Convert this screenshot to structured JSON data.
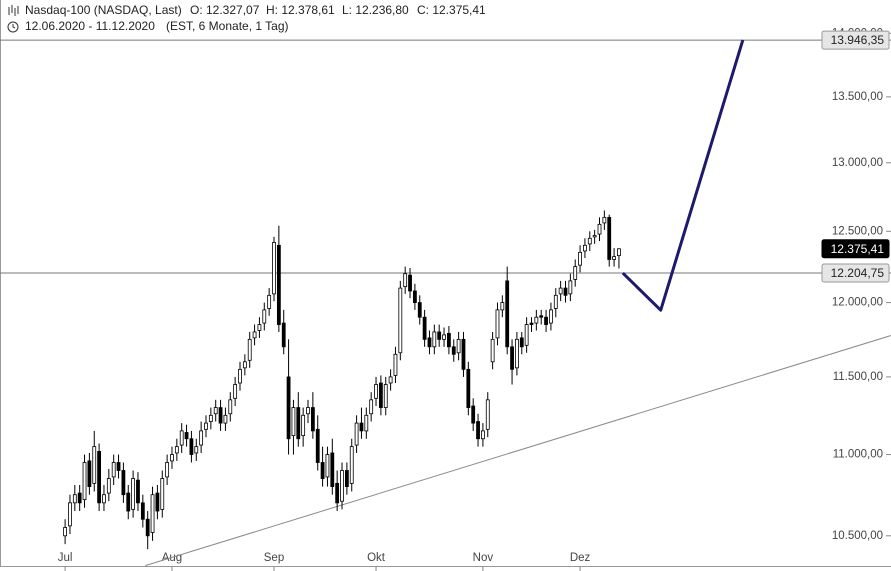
{
  "header": {
    "title": "Nasdaq-100 (NASDAQ, Last)",
    "ohlc": [
      "O: 12.327,07",
      "H: 12.378,61",
      "L: 12.236,80",
      "C: 12.375,41"
    ],
    "range": "12.06.2020 - 11.12.2020",
    "info": "(EST, 6 Monate, 1 Tag)"
  },
  "chart_data": {
    "type": "candlestick",
    "log_scale": true,
    "grid": false,
    "xlim": [
      -13.4,
      170
    ],
    "ylim": [
      10320,
      14270
    ],
    "yticks": [
      {
        "value": 10500,
        "label": "10.500,00"
      },
      {
        "value": 11000,
        "label": "11.000,00"
      },
      {
        "value": 11500,
        "label": "11.500,00"
      },
      {
        "value": 12000,
        "label": "12.000,00"
      },
      {
        "value": 12500,
        "label": "12.500,00"
      },
      {
        "value": 13000,
        "label": "13.000,00"
      },
      {
        "value": 13500,
        "label": "13.500,00"
      },
      {
        "value": 14000,
        "label": "14.000,00"
      }
    ],
    "categories": [
      "Jul",
      null,
      null,
      null,
      null,
      null,
      null,
      null,
      null,
      null,
      null,
      null,
      null,
      null,
      null,
      null,
      null,
      null,
      null,
      null,
      null,
      null,
      "Aug",
      null,
      null,
      null,
      null,
      null,
      null,
      null,
      null,
      null,
      null,
      null,
      null,
      null,
      null,
      null,
      null,
      null,
      null,
      null,
      null,
      "Sep",
      null,
      null,
      null,
      null,
      null,
      null,
      null,
      null,
      null,
      null,
      null,
      null,
      null,
      null,
      null,
      null,
      null,
      null,
      null,
      null,
      "Okt",
      null,
      null,
      null,
      null,
      null,
      null,
      null,
      null,
      null,
      null,
      null,
      null,
      null,
      null,
      null,
      null,
      null,
      null,
      null,
      null,
      null,
      "Nov",
      null,
      null,
      null,
      null,
      null,
      null,
      null,
      null,
      null,
      null,
      null,
      null,
      null,
      null,
      null,
      null,
      null,
      null,
      null,
      "Dez",
      null,
      null,
      null,
      null,
      null,
      null,
      null,
      null
    ],
    "open": [
      10500,
      10560,
      10700,
      10760,
      10720,
      10960,
      10820,
      11020,
      10700,
      10760,
      10860,
      10950,
      10900,
      10760,
      10660,
      10840,
      10700,
      10600,
      10520,
      10760,
      10660,
      10860,
      10960,
      11010,
      11060,
      11140,
      11100,
      11010,
      11060,
      11160,
      11210,
      11260,
      11300,
      11200,
      11260,
      11360,
      11460,
      11560,
      11610,
      11760,
      11810,
      11860,
      11960,
      12060,
      12400,
      11860,
      11500,
      11120,
      11300,
      11120,
      11260,
      11300,
      11160,
      10950,
      10860,
      11010,
      10820,
      10710,
      10900,
      10820,
      11060,
      11200,
      11150,
      11260,
      11360,
      11460,
      11300,
      11460,
      11510,
      11660,
      12110,
      12190,
      12080,
      12000,
      11900,
      11760,
      11700,
      11800,
      11750,
      11790,
      11700,
      11660,
      11750,
      11550,
      11310,
      11210,
      11100,
      11160,
      11600,
      11760,
      11950,
      12150,
      11700,
      11560,
      11760,
      11710,
      11860,
      11860,
      11910,
      11900,
      11860,
      11960,
      12060,
      12100,
      12060,
      12160,
      12260,
      12360,
      12410,
      12460,
      12480,
      12560,
      12600,
      12300,
      12327.07
    ],
    "high": [
      10600,
      10750,
      10810,
      10810,
      11000,
      11010,
      11150,
      11070,
      10810,
      10910,
      11000,
      11000,
      10950,
      10810,
      10900,
      10890,
      10750,
      10650,
      10800,
      10810,
      10900,
      11000,
      11050,
      11100,
      11200,
      11190,
      11150,
      11100,
      11210,
      11250,
      11300,
      11350,
      11350,
      11300,
      11400,
      11500,
      11600,
      11650,
      11800,
      11850,
      11900,
      12000,
      12100,
      12460,
      12540,
      11950,
      11750,
      11350,
      11400,
      11300,
      11350,
      11400,
      11250,
      11050,
      11050,
      11100,
      10900,
      10950,
      10950,
      11100,
      11250,
      11300,
      11300,
      11400,
      11500,
      11510,
      11500,
      11550,
      11700,
      12150,
      12250,
      12240,
      12130,
      12050,
      11950,
      11810,
      11850,
      11850,
      11830,
      11840,
      11750,
      11800,
      11800,
      11600,
      11360,
      11260,
      11200,
      11400,
      11800,
      12000,
      12050,
      12250,
      11750,
      11800,
      11800,
      11900,
      11900,
      11950,
      11950,
      11950,
      12000,
      12100,
      12150,
      12150,
      12200,
      12300,
      12400,
      12450,
      12500,
      12510,
      12600,
      12650,
      12620,
      12380,
      12378.61
    ],
    "low": [
      10450,
      10510,
      10650,
      10650,
      10670,
      10750,
      10770,
      10650,
      10650,
      10710,
      10810,
      10850,
      10700,
      10600,
      10610,
      10650,
      10550,
      10420,
      10470,
      10600,
      10610,
      10810,
      10910,
      10960,
      11010,
      11050,
      10950,
      10960,
      11010,
      11110,
      11160,
      11210,
      11150,
      11150,
      11210,
      11310,
      11410,
      11510,
      11560,
      11710,
      11760,
      11810,
      11910,
      12010,
      11800,
      11650,
      11000,
      11000,
      11050,
      11050,
      11200,
      11100,
      10900,
      10800,
      10800,
      10750,
      10650,
      10660,
      10750,
      10770,
      11010,
      11100,
      11100,
      11210,
      11310,
      11250,
      11250,
      11410,
      11460,
      11610,
      12060,
      12030,
      11950,
      11850,
      11700,
      11650,
      11650,
      11700,
      11700,
      11650,
      11600,
      11610,
      11500,
      11250,
      11150,
      11050,
      11050,
      11110,
      11550,
      11710,
      11900,
      11650,
      11450,
      11510,
      11650,
      11660,
      11800,
      11810,
      11850,
      11800,
      11810,
      11900,
      12010,
      12000,
      12010,
      12110,
      12210,
      12310,
      12360,
      12410,
      12430,
      12510,
      12250,
      12250,
      12236.8
    ],
    "close": [
      10550,
      10700,
      10750,
      10700,
      10950,
      10800,
      11050,
      10700,
      10750,
      10850,
      10950,
      10900,
      10750,
      10650,
      10850,
      10700,
      10600,
      10500,
      10750,
      10650,
      10850,
      10950,
      11000,
      11050,
      11150,
      11100,
      11000,
      11050,
      11150,
      11200,
      11250,
      11300,
      11200,
      11250,
      11350,
      11450,
      11550,
      11600,
      11750,
      11800,
      11850,
      11950,
      12050,
      12420,
      11850,
      11700,
      11100,
      11300,
      11100,
      11250,
      11300,
      11150,
      10950,
      10850,
      11000,
      10800,
      10700,
      10900,
      10800,
      11050,
      11200,
      11150,
      11250,
      11350,
      11450,
      11300,
      11450,
      11500,
      11650,
      12100,
      12200,
      12080,
      12000,
      11900,
      11750,
      11700,
      11800,
      11750,
      11780,
      11700,
      11650,
      11750,
      11550,
      11300,
      11200,
      11100,
      11150,
      11350,
      11750,
      11950,
      12000,
      11700,
      11550,
      11750,
      11700,
      11850,
      11850,
      11900,
      11900,
      11850,
      11950,
      12050,
      12100,
      12050,
      12150,
      12250,
      12350,
      12400,
      12450,
      12470,
      12550,
      12600,
      12300,
      12320,
      12375.41
    ],
    "up_color": "#ffffff",
    "down_color": "#000000",
    "levels": [
      {
        "value": 13946.35,
        "label": "13.946,35",
        "line": true,
        "highlight": false
      },
      {
        "value": 12375.41,
        "label": "12.375,41",
        "line": false,
        "highlight": true
      },
      {
        "value": 12204.75,
        "label": "12.204,75",
        "line": true,
        "highlight": false
      }
    ],
    "trendline": {
      "x": [
        16.5,
        170
      ],
      "values": [
        10322,
        11776
      ],
      "color": "#8a8a8a"
    },
    "projection": {
      "x": [
        114.8,
        122.6,
        139.5
      ],
      "values": [
        12204.75,
        11948,
        13946.35
      ],
      "color": "#1e1a6b"
    }
  }
}
